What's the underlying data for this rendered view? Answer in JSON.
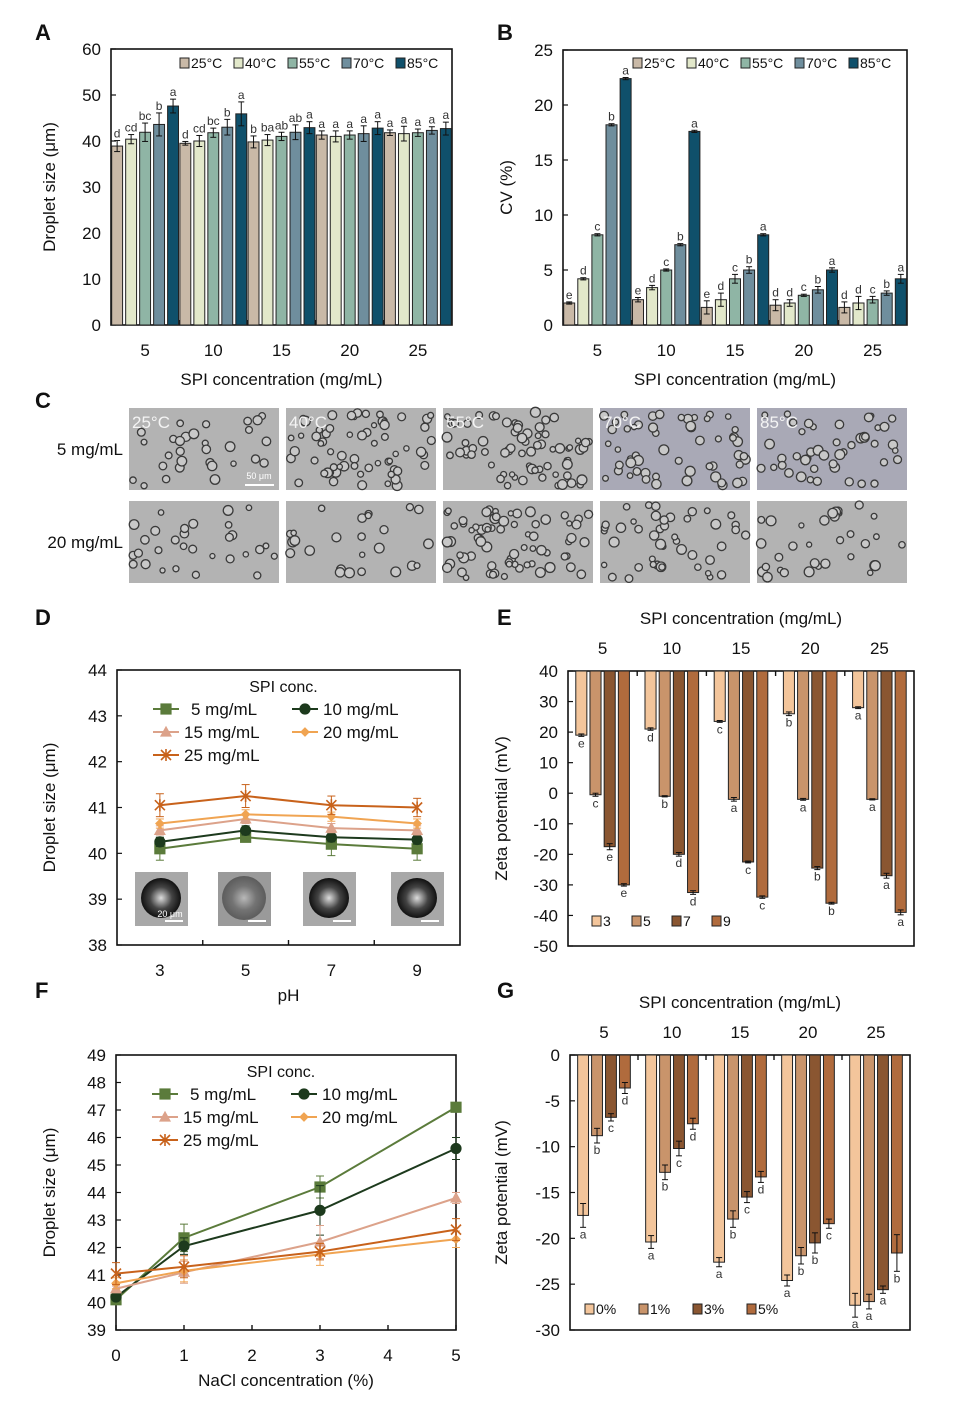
{
  "panel_c": {
    "letter": "C",
    "row_labels": [
      "5 mg/mL",
      "20 mg/mL"
    ],
    "column_labels": [
      "25°C",
      "40°C",
      "55°C",
      "70°C",
      "85°C"
    ],
    "scale_bar": "50 μm"
  },
  "panel_d_insets": {
    "scale_bar": "20 μm"
  },
  "chart_data": [
    {
      "id": "A",
      "type": "bar",
      "xaxis_position": "bottom",
      "xlabel": "SPI concentration (mg/mL)",
      "ylabel": "Droplet size (μm)",
      "ylim": [
        0,
        60
      ],
      "yticks": [
        0,
        10,
        20,
        30,
        40,
        50,
        60
      ],
      "categories": [
        "5",
        "10",
        "15",
        "20",
        "25"
      ],
      "legend": "top-right",
      "series": [
        {
          "name": "25°C",
          "color": "#c9b9a7",
          "values": [
            38.9,
            39.5,
            39.8,
            41.3,
            41.8
          ],
          "errors": [
            1.2,
            0.4,
            1.3,
            0.9,
            0.6
          ],
          "letters": [
            "d",
            "d",
            "b",
            "a",
            "a"
          ]
        },
        {
          "name": "40°C",
          "color": "#e2e8ca",
          "values": [
            40.4,
            40.0,
            40.2,
            41.0,
            41.6
          ],
          "errors": [
            1.0,
            1.2,
            1.2,
            1.2,
            1.6
          ],
          "letters": [
            "cd",
            "cd",
            "ba",
            "a",
            "a"
          ]
        },
        {
          "name": "55°C",
          "color": "#8fb5a5",
          "values": [
            41.9,
            41.8,
            41.0,
            41.3,
            41.8
          ],
          "errors": [
            2.0,
            1.0,
            0.9,
            0.9,
            0.8
          ],
          "letters": [
            "bc",
            "bc",
            "ab",
            "a",
            "a"
          ]
        },
        {
          "name": "70°C",
          "color": "#6f8e9d",
          "values": [
            43.6,
            43.0,
            41.9,
            41.6,
            42.3
          ],
          "errors": [
            2.5,
            1.7,
            1.6,
            1.7,
            0.8
          ],
          "letters": [
            "b",
            "b",
            "ab",
            "a",
            "a"
          ]
        },
        {
          "name": "85°C",
          "color": "#0f506b",
          "values": [
            47.6,
            45.9,
            42.9,
            42.8,
            42.7
          ],
          "errors": [
            1.5,
            2.6,
            1.3,
            1.4,
            1.4
          ],
          "letters": [
            "a",
            "a",
            "a",
            "a",
            "a"
          ]
        }
      ]
    },
    {
      "id": "B",
      "type": "bar",
      "xaxis_position": "bottom",
      "xlabel": "SPI concentration (mg/mL)",
      "ylabel": "CV (%)",
      "ylim": [
        0,
        25
      ],
      "yticks": [
        0,
        5,
        10,
        15,
        20,
        25
      ],
      "categories": [
        "5",
        "10",
        "15",
        "20",
        "25"
      ],
      "legend": "top-right",
      "series": [
        {
          "name": "25°C",
          "color": "#c9b9a7",
          "values": [
            2.0,
            2.3,
            1.6,
            1.8,
            1.6
          ],
          "errors": [
            0.1,
            0.2,
            0.6,
            0.5,
            0.5
          ],
          "letters": [
            "e",
            "e",
            "e",
            "d",
            "d"
          ]
        },
        {
          "name": "40°C",
          "color": "#e2e8ca",
          "values": [
            4.2,
            3.4,
            2.3,
            2.0,
            2.0
          ],
          "errors": [
            0.1,
            0.2,
            0.6,
            0.3,
            0.6
          ],
          "letters": [
            "d",
            "d",
            "d",
            "d",
            "d"
          ]
        },
        {
          "name": "55°C",
          "color": "#8fb5a5",
          "values": [
            8.2,
            5.0,
            4.2,
            2.7,
            2.3
          ],
          "errors": [
            0.1,
            0.1,
            0.4,
            0.1,
            0.3
          ],
          "letters": [
            "c",
            "c",
            "c",
            "c",
            "c"
          ]
        },
        {
          "name": "70°C",
          "color": "#6f8e9d",
          "values": [
            18.2,
            7.3,
            5.0,
            3.2,
            2.9
          ],
          "errors": [
            0.1,
            0.1,
            0.3,
            0.3,
            0.2
          ],
          "letters": [
            "b",
            "b",
            "b",
            "b",
            "b"
          ]
        },
        {
          "name": "85°C",
          "color": "#0f506b",
          "values": [
            22.4,
            17.6,
            8.2,
            5.0,
            4.2
          ],
          "errors": [
            0.1,
            0.1,
            0.1,
            0.2,
            0.4
          ],
          "letters": [
            "a",
            "a",
            "a",
            "a",
            "a"
          ]
        }
      ]
    },
    {
      "id": "D",
      "type": "line",
      "xlabel": "pH",
      "ylabel": "Droplet size (μm)",
      "xlim": [
        2,
        10
      ],
      "xticks": [
        3,
        5,
        7,
        9
      ],
      "ylim": [
        38,
        44
      ],
      "yticks": [
        38,
        39,
        40,
        41,
        42,
        43,
        44
      ],
      "legend_title": "SPI conc.",
      "legend": "top",
      "x": [
        3,
        5,
        7,
        9
      ],
      "series": [
        {
          "name": "5 mg/mL",
          "color": "#5b7b3b",
          "marker": "square",
          "values": [
            40.1,
            40.35,
            40.2,
            40.1
          ],
          "errors": [
            0.25,
            0.1,
            0.25,
            0.25
          ]
        },
        {
          "name": "10 mg/mL",
          "color": "#1d3a1d",
          "marker": "circle",
          "values": [
            40.25,
            40.5,
            40.35,
            40.3
          ],
          "errors": [
            0.1,
            0.1,
            0.1,
            0.1
          ]
        },
        {
          "name": "15 mg/mL",
          "color": "#dca28a",
          "marker": "triangle",
          "values": [
            40.5,
            40.75,
            40.55,
            40.5
          ],
          "errors": [
            0.1,
            0.1,
            0.1,
            0.1
          ]
        },
        {
          "name": "20 mg/mL",
          "color": "#f0a452",
          "marker": "diamond",
          "values": [
            40.65,
            40.85,
            40.8,
            40.65
          ],
          "errors": [
            0.1,
            0.1,
            0.1,
            0.1
          ]
        },
        {
          "name": "25 mg/mL",
          "color": "#c8621b",
          "marker": "star",
          "values": [
            41.05,
            41.25,
            41.05,
            41.0
          ],
          "errors": [
            0.25,
            0.25,
            0.2,
            0.2
          ]
        }
      ]
    },
    {
      "id": "E",
      "type": "bar",
      "xaxis_position": "top",
      "xlabel": "SPI concentration (mg/mL)",
      "ylabel": "Zeta potential (mV)",
      "ylim": [
        -50,
        40
      ],
      "yticks": [
        -50,
        -40,
        -30,
        -20,
        -10,
        0,
        10,
        20,
        30,
        40
      ],
      "categories": [
        "5",
        "10",
        "15",
        "20",
        "25"
      ],
      "legend": "bottom-left",
      "series": [
        {
          "name": "3",
          "color": "#f3c59b",
          "values": [
            19,
            21,
            23.5,
            26,
            28
          ],
          "errors": [
            0.4,
            0.4,
            0.3,
            0.6,
            0.3
          ],
          "letters": [
            "e",
            "d",
            "c",
            "b",
            "a"
          ]
        },
        {
          "name": "5",
          "color": "#c9946b",
          "values": [
            -0.5,
            -1,
            -2,
            -2,
            -2
          ],
          "errors": [
            0.5,
            0.2,
            0.6,
            0.3,
            0.2
          ],
          "letters": [
            "c",
            "b",
            "a",
            "a",
            "a"
          ]
        },
        {
          "name": "7",
          "color": "#8a5631",
          "values": [
            -17.5,
            -20,
            -22.5,
            -24.5,
            -27
          ],
          "errors": [
            1.0,
            0.6,
            0.3,
            0.5,
            0.8
          ],
          "letters": [
            "e",
            "d",
            "c",
            "b",
            "a"
          ]
        },
        {
          "name": "9",
          "color": "#b06b3d",
          "values": [
            -30,
            -32.5,
            -34,
            -36,
            -39
          ],
          "errors": [
            0.4,
            0.6,
            0.4,
            0.3,
            0.8
          ],
          "letters": [
            "e",
            "d",
            "c",
            "b",
            "a"
          ]
        }
      ]
    },
    {
      "id": "F",
      "type": "line",
      "xlabel": "NaCl concentration (%)",
      "ylabel": "Droplet size (μm)",
      "xlim": [
        0,
        5
      ],
      "xticks": [
        0,
        1,
        2,
        3,
        4,
        5
      ],
      "ylim": [
        39,
        49
      ],
      "yticks": [
        39,
        40,
        41,
        42,
        43,
        44,
        45,
        46,
        47,
        48,
        49
      ],
      "legend_title": "SPI conc.",
      "legend": "top",
      "x": [
        0,
        1,
        3,
        5
      ],
      "series": [
        {
          "name": "5 mg/mL",
          "color": "#5b7b3b",
          "marker": "square",
          "values": [
            40.1,
            42.35,
            44.2,
            47.1
          ],
          "errors": [
            0.1,
            0.5,
            0.4,
            0.1
          ]
        },
        {
          "name": "10 mg/mL",
          "color": "#1d3a1d",
          "marker": "circle",
          "values": [
            40.2,
            42.05,
            43.35,
            45.6
          ],
          "errors": [
            0.1,
            0.3,
            0.9,
            0.4
          ]
        },
        {
          "name": "15 mg/mL",
          "color": "#dca28a",
          "marker": "triangle",
          "values": [
            40.5,
            41.1,
            42.2,
            43.8
          ],
          "errors": [
            0.1,
            0.4,
            0.6,
            0.2
          ]
        },
        {
          "name": "20 mg/mL",
          "color": "#f0a452",
          "marker": "diamond",
          "values": [
            40.7,
            41.15,
            41.75,
            42.3
          ],
          "errors": [
            0.2,
            0.4,
            0.4,
            0.3
          ]
        },
        {
          "name": "25 mg/mL",
          "color": "#c8621b",
          "marker": "star",
          "values": [
            41.05,
            41.3,
            41.85,
            42.65
          ],
          "errors": [
            0.4,
            0.4,
            0.3,
            0.4
          ]
        }
      ]
    },
    {
      "id": "G",
      "type": "bar",
      "xaxis_position": "top",
      "xlabel": "SPI concentration (mg/mL)",
      "ylabel": "Zeta potential (mV)",
      "ylim": [
        -30,
        0
      ],
      "yticks": [
        -30,
        -25,
        -20,
        -15,
        -10,
        -5,
        0
      ],
      "categories": [
        "5",
        "10",
        "15",
        "20",
        "25"
      ],
      "legend": "bottom-left",
      "series": [
        {
          "name": "0%",
          "color": "#f3c59b",
          "values": [
            -17.5,
            -20.4,
            -22.6,
            -24.6,
            -27.3
          ],
          "errors": [
            1.3,
            0.7,
            0.5,
            0.6,
            1.3
          ],
          "letters": [
            "a",
            "a",
            "a",
            "a",
            "a"
          ]
        },
        {
          "name": "1%",
          "color": "#c9946b",
          "values": [
            -8.8,
            -12.8,
            -17.9,
            -21.9,
            -26.9
          ],
          "errors": [
            0.8,
            0.8,
            0.9,
            0.9,
            0.8
          ],
          "letters": [
            "b",
            "b",
            "b",
            "b",
            "a"
          ]
        },
        {
          "name": "3%",
          "color": "#8a5631",
          "values": [
            -6.8,
            -10.2,
            -15.5,
            -20.5,
            -25.6
          ],
          "errors": [
            0.4,
            0.8,
            0.6,
            1.1,
            0.4
          ],
          "letters": [
            "c",
            "c",
            "c",
            "b",
            "a"
          ]
        },
        {
          "name": "5%",
          "color": "#b06b3d",
          "values": [
            -3.6,
            -7.5,
            -13.3,
            -18.4,
            -21.6
          ],
          "errors": [
            0.6,
            0.6,
            0.6,
            0.5,
            2.0
          ],
          "letters": [
            "d",
            "d",
            "d",
            "c",
            "b"
          ]
        }
      ]
    }
  ]
}
